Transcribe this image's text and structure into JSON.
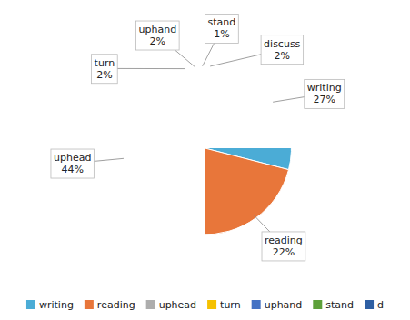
{
  "chart_data": {
    "type": "pie",
    "categories": [
      "discuss",
      "writing",
      "reading",
      "uphead",
      "turn",
      "uphand",
      "stand"
    ],
    "values": [
      2,
      27,
      22,
      44,
      2,
      2,
      1
    ],
    "colors": [
      "#2E5FA3",
      "#4BACD6",
      "#E8763A",
      "#ADADAD",
      "#F5C100",
      "#4472C4",
      "#5DA03A"
    ],
    "data_labels": true,
    "value_labels": [
      "discuss\n2%",
      "writing\n27%",
      "reading\n22%",
      "uphead\n44%",
      "turn\n2%",
      "uphand\n2%",
      "stand\n1%"
    ],
    "legend": "bottom",
    "legend_labels": [
      "writing",
      "reading",
      "uphead",
      "turn",
      "uphand",
      "stand",
      "d"
    ],
    "legend_colors": [
      "#4BACD6",
      "#E8763A",
      "#ADADAD",
      "#F5C100",
      "#4472C4",
      "#5DA03A",
      "#2E5FA3"
    ]
  }
}
